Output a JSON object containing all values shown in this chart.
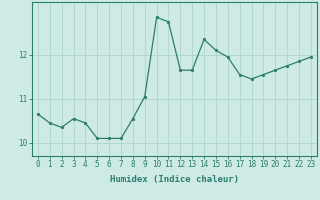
{
  "x": [
    0,
    1,
    2,
    3,
    4,
    5,
    6,
    7,
    8,
    9,
    10,
    11,
    12,
    13,
    14,
    15,
    16,
    17,
    18,
    19,
    20,
    21,
    22,
    23
  ],
  "y": [
    10.65,
    10.45,
    10.35,
    10.55,
    10.45,
    10.1,
    10.1,
    10.1,
    10.55,
    11.05,
    12.85,
    12.75,
    11.65,
    11.65,
    12.35,
    12.1,
    11.95,
    11.55,
    11.45,
    11.55,
    11.65,
    11.75,
    11.85,
    11.95
  ],
  "line_color": "#2d7d6e",
  "marker": "o",
  "markersize": 1.8,
  "linewidth": 0.9,
  "bg_color": "#cdeae5",
  "grid_color": "#aed4ce",
  "xlabel": "Humidex (Indice chaleur)",
  "xlabel_fontsize": 6.5,
  "tick_fontsize": 5.5,
  "yticks": [
    10,
    11,
    12
  ],
  "ylim": [
    9.7,
    13.2
  ],
  "xlim": [
    -0.5,
    23.5
  ]
}
